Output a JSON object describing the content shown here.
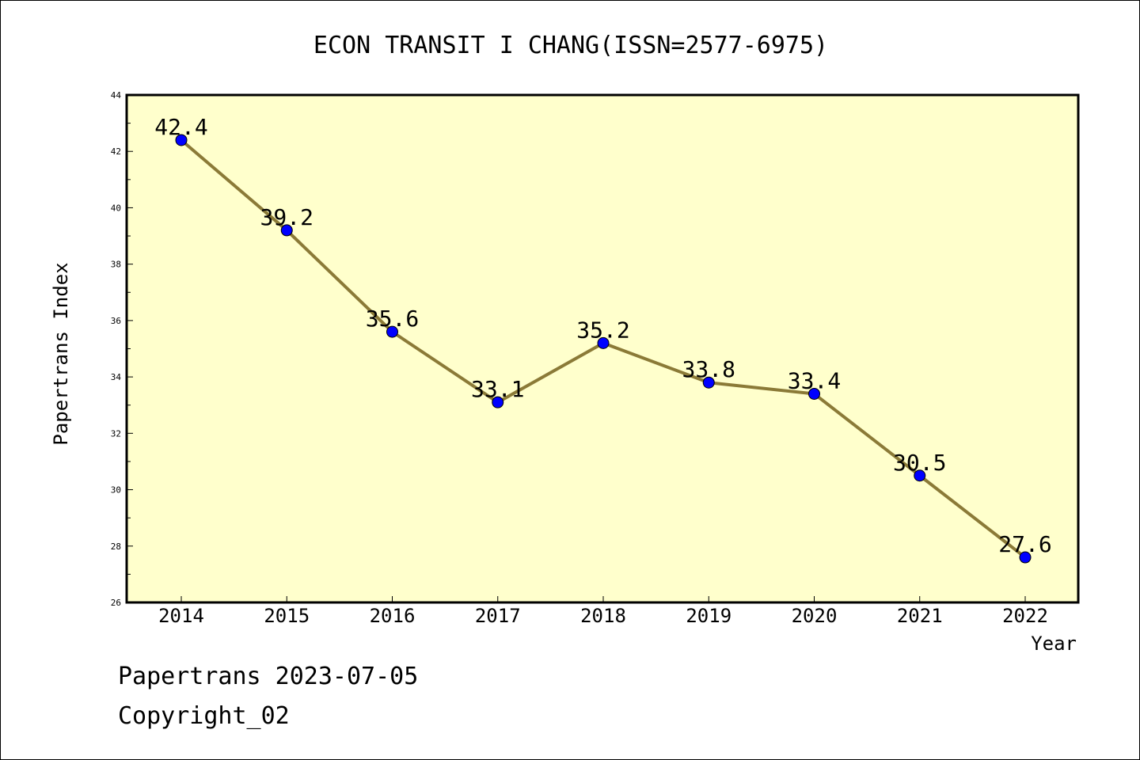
{
  "chart_data": {
    "type": "line",
    "title": "ECON TRANSIT I CHANG(ISSN=2577-6975)",
    "xlabel": "Year",
    "ylabel": "Papertrans Index",
    "categories": [
      "2014",
      "2015",
      "2016",
      "2017",
      "2018",
      "2019",
      "2020",
      "2021",
      "2022"
    ],
    "series": [
      {
        "values": [
          42.4,
          39.2,
          35.6,
          33.1,
          35.2,
          33.8,
          33.4,
          30.5,
          27.6
        ]
      }
    ],
    "data_labels": [
      "42.4",
      "39.2",
      "35.6",
      "33.1",
      "35.2",
      "33.8",
      "33.4",
      "30.5",
      "27.6"
    ],
    "ylim": [
      26,
      44
    ],
    "yticks": [
      26,
      28,
      30,
      32,
      34,
      36,
      38,
      40,
      42,
      44
    ],
    "yticks_minor": [
      27,
      29,
      31,
      33,
      35,
      37,
      39,
      41,
      43
    ],
    "grid": false,
    "colors": {
      "plot_background": "#ffffcc",
      "line": "#8b7a37",
      "marker": "#0000ff"
    }
  },
  "footer": {
    "line1": "Papertrans 2023-07-05",
    "line2": "Copyright_02"
  }
}
